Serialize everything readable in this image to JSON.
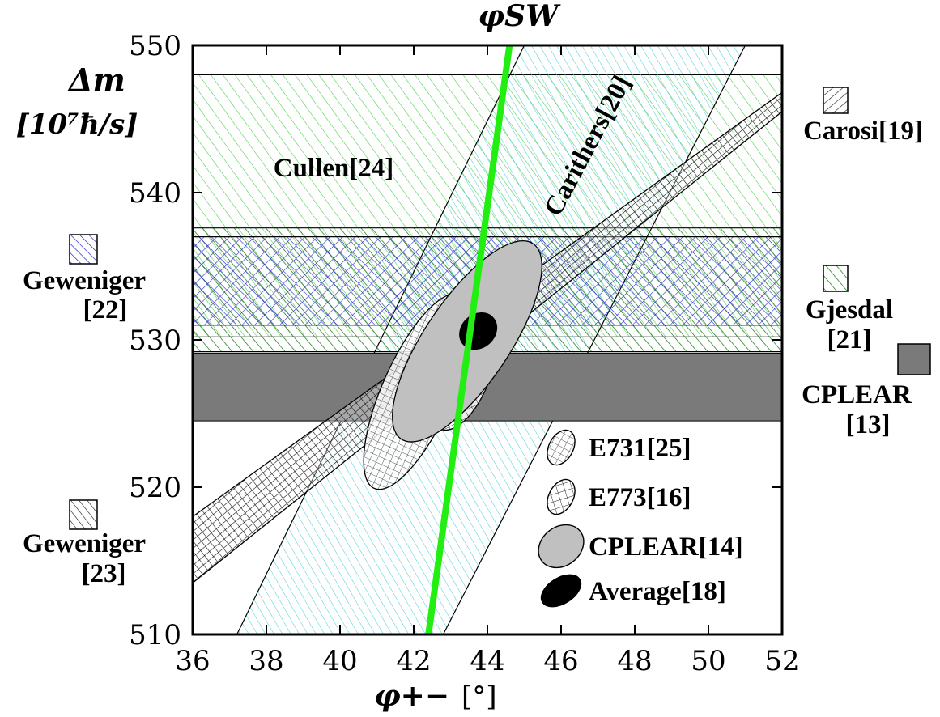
{
  "chart_data": {
    "type": "region-plot",
    "title": "φSW",
    "xlabel": "φ+−",
    "xunit": "[°]",
    "ylabel": "Δm",
    "yunit": "[10⁷ħ/s]",
    "xlim": [
      36,
      52
    ],
    "ylim": [
      510,
      550
    ],
    "xticks": [
      "36",
      "38",
      "40",
      "42",
      "44",
      "46",
      "48",
      "50",
      "52"
    ],
    "yticks": [
      "510",
      "520",
      "530",
      "540",
      "550"
    ],
    "phi_sw_line": {
      "points": [
        [
          42.4,
          510
        ],
        [
          44.6,
          550
        ]
      ],
      "color": "#22ee11"
    },
    "bands": [
      {
        "name": "Cullen[24]",
        "type": "horizontal",
        "ymin": 530.2,
        "ymax": 548,
        "color": "#33bb33",
        "hatch": "diag-up"
      },
      {
        "name": "Gjesdal[21]",
        "type": "horizontal",
        "ymin": 529.2,
        "ymax": 537.6,
        "color": "#228822",
        "hatch": "diag-up"
      },
      {
        "name": "Geweniger[22]",
        "type": "horizontal",
        "ymin": 531,
        "ymax": 537,
        "color": "#2222cc",
        "hatch": "cross"
      },
      {
        "name": "CPLEAR[13]",
        "type": "horizontal",
        "ymin": 524.5,
        "ymax": 529.1,
        "color": "#7a7a7a",
        "hatch": "solid"
      },
      {
        "name": "Carithers[20]",
        "type": "slanted",
        "left_edge": [
          [
            37.2,
            510
          ],
          [
            45.0,
            550
          ]
        ],
        "right_edge": [
          [
            42.8,
            510
          ],
          [
            51.0,
            550
          ]
        ],
        "color": "#44ccdd",
        "hatch": "diag-up"
      },
      {
        "name": "Carosi[19]",
        "type": "slanted",
        "lower_edge": [
          [
            36,
            513.5
          ],
          [
            52,
            545.5
          ]
        ],
        "upper_edge": [
          [
            36,
            518.0
          ],
          [
            52,
            546.8
          ]
        ],
        "color": "#000000",
        "hatch": "diag-down"
      },
      {
        "name": "Geweniger[23]",
        "type": "slanted",
        "lower_edge": [
          [
            36,
            513.5
          ],
          [
            52,
            545.5
          ]
        ],
        "upper_edge": [
          [
            36,
            518.0
          ],
          [
            52,
            546.8
          ]
        ],
        "color": "#000000",
        "hatch": "diag-up"
      }
    ],
    "ellipses": [
      {
        "name": "E731[25]",
        "cx": 42.1,
        "cy": 526.5,
        "rx_deg": 0.95,
        "ry_dm": 7.2,
        "angle": 24,
        "fill": "#ffffff",
        "hatch": "grid"
      },
      {
        "name": "E773[16]",
        "cx": 43.3,
        "cy": 528.3,
        "rx_deg": 0.85,
        "ry_dm": 4.6,
        "angle": 18,
        "fill": "#ffffff",
        "hatch": "cross"
      },
      {
        "name": "CPLEAR[14]",
        "cx": 43.45,
        "cy": 529.9,
        "rx_deg": 1.15,
        "ry_dm": 8.0,
        "angle": 34,
        "fill": "#c0c0c0",
        "hatch": "solid"
      },
      {
        "name": "Average[18]",
        "cx": 43.75,
        "cy": 530.6,
        "rx_deg": 0.45,
        "ry_dm": 1.35,
        "angle": 48,
        "fill": "#000000",
        "hatch": "solid"
      }
    ],
    "annotations": [
      "Cullen[24]",
      "Carithers[20]"
    ],
    "side_legend": [
      {
        "name": "Carosi[19]",
        "lines": [
          "Carosi[19]"
        ],
        "color": "#000000",
        "hatch": "diag-down"
      },
      {
        "name": "Gjesdal[21]",
        "lines": [
          "Gjesdal",
          "[21]"
        ],
        "color": "#228822",
        "hatch": "diag-up"
      },
      {
        "name": "CPLEAR[13]",
        "lines": [
          "CPLEAR",
          "[13]"
        ],
        "color": "#7a7a7a",
        "hatch": "solid"
      },
      {
        "name": "Geweniger[22]",
        "lines": [
          "Geweniger",
          "[22]"
        ],
        "color": "#2222cc",
        "hatch": "diag-up"
      },
      {
        "name": "Geweniger[23]",
        "lines": [
          "Geweniger",
          "[23]"
        ],
        "color": "#000000",
        "hatch": "diag-down"
      }
    ],
    "inner_legend": [
      "E731[25]",
      "E773[16]",
      "CPLEAR[14]",
      "Average[18]"
    ],
    "grid": false
  }
}
